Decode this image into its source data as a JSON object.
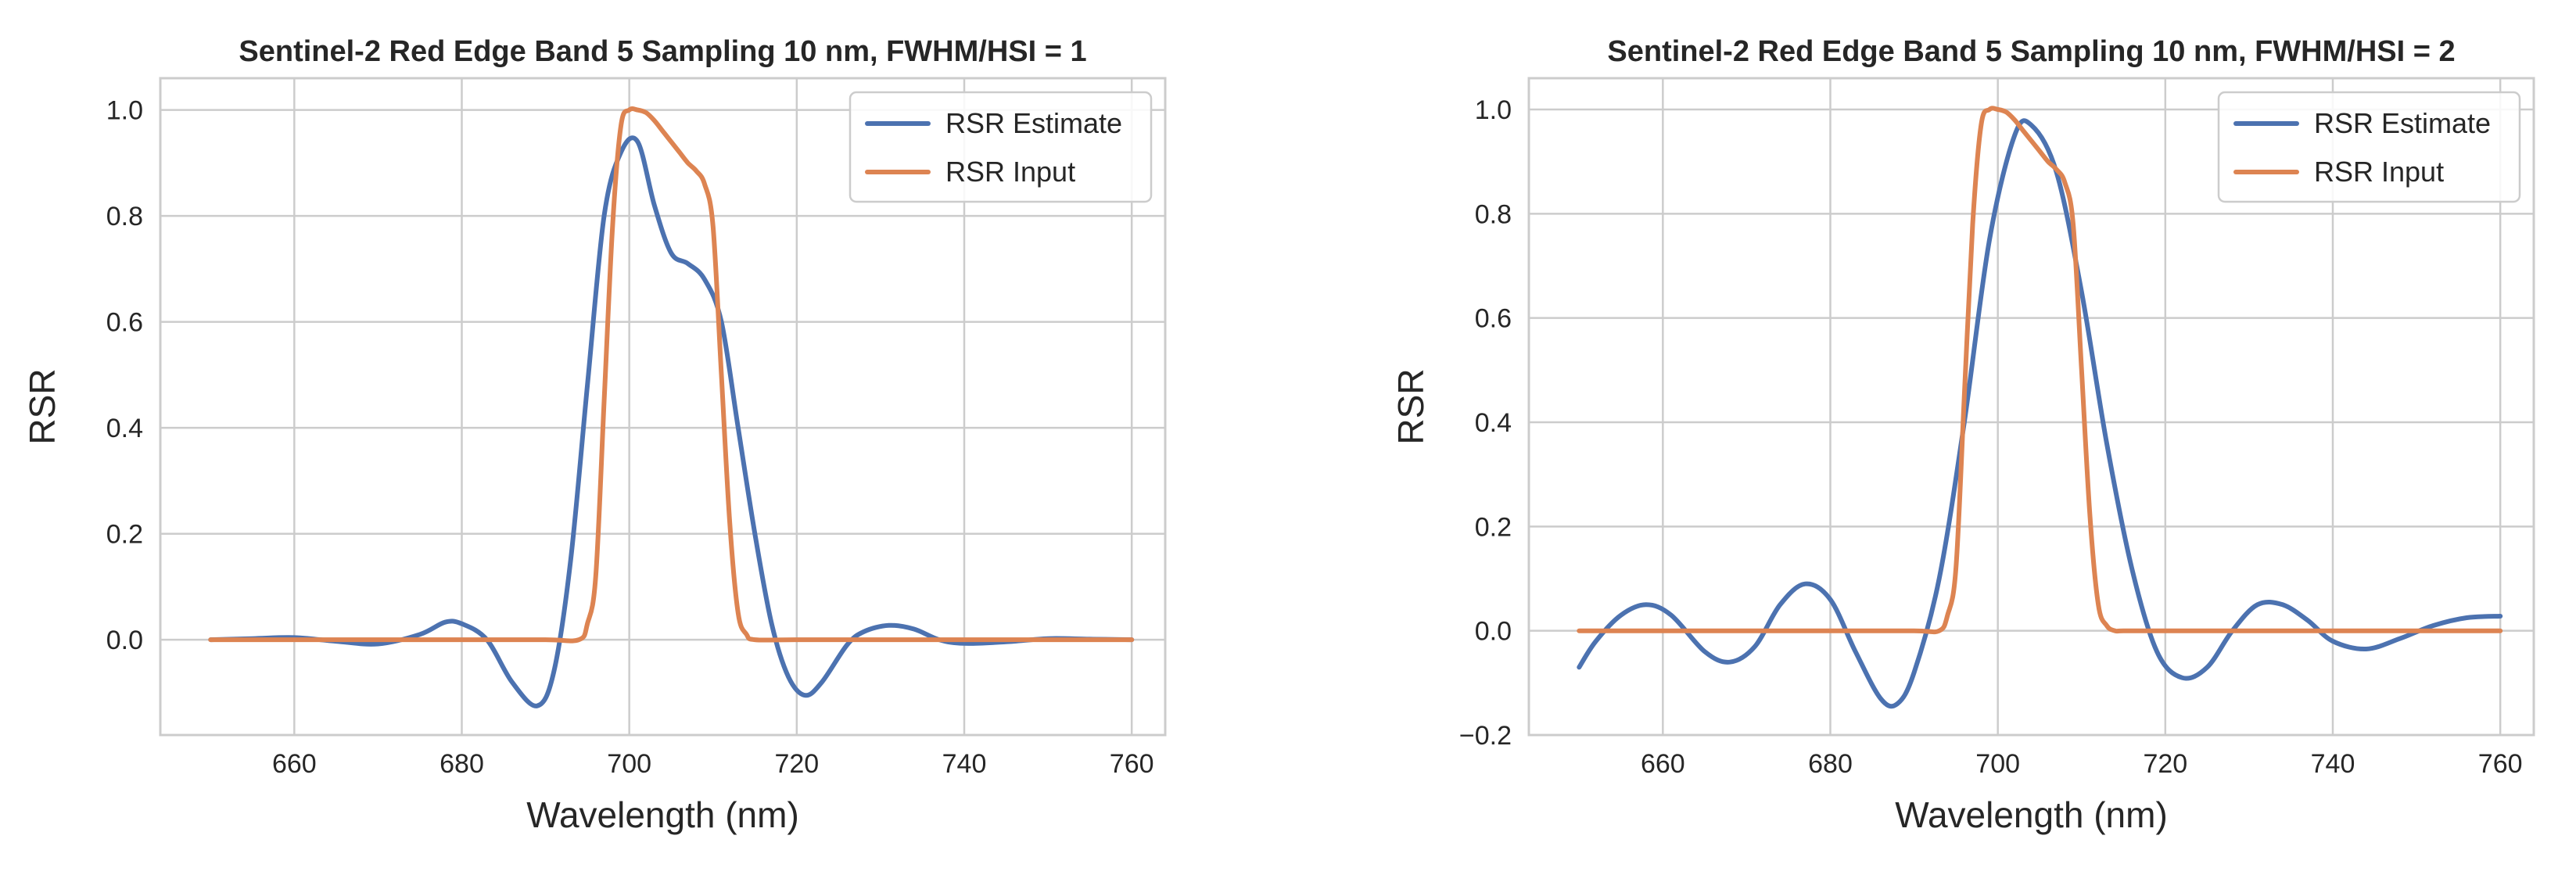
{
  "chart_data": [
    {
      "type": "line",
      "title": "Sentinel-2 Red Edge Band 5 Sampling 10 nm, FWHM/HSI = 1",
      "xlabel": "Wavelength (nm)",
      "ylabel": "RSR",
      "xlim": [
        644,
        764
      ],
      "ylim": [
        -0.18,
        1.06
      ],
      "xticks": [
        660,
        680,
        700,
        720,
        740,
        760
      ],
      "yticks": [
        0.0,
        0.2,
        0.4,
        0.6,
        0.8,
        1.0
      ],
      "ytick_labels": [
        "0.0",
        "0.2",
        "0.4",
        "0.6",
        "0.8",
        "1.0"
      ],
      "grid": true,
      "legend_position": "top-right",
      "series": [
        {
          "name": "RSR Estimate",
          "color": "#4c72b0",
          "x": [
            650,
            655,
            660,
            665,
            670,
            675,
            678,
            680,
            683,
            686,
            689,
            691,
            693,
            695,
            697,
            699,
            701,
            703,
            705,
            707,
            709,
            711,
            713,
            715,
            717,
            719,
            721,
            723,
            726,
            728,
            731,
            734,
            737,
            740,
            745,
            750,
            755,
            760
          ],
          "y": [
            0.0,
            0.002,
            0.004,
            -0.003,
            -0.008,
            0.01,
            0.033,
            0.03,
            0.0,
            -0.08,
            -0.125,
            -0.06,
            0.15,
            0.48,
            0.8,
            0.92,
            0.94,
            0.82,
            0.73,
            0.71,
            0.68,
            0.6,
            0.4,
            0.2,
            0.03,
            -0.07,
            -0.105,
            -0.08,
            -0.01,
            0.015,
            0.027,
            0.02,
            0.0,
            -0.007,
            -0.004,
            0.002,
            0.001,
            0.0
          ]
        },
        {
          "name": "RSR Input",
          "color": "#dd8452",
          "x": [
            650,
            660,
            670,
            680,
            690,
            694,
            695,
            696,
            697,
            698,
            699,
            700,
            701,
            702,
            703,
            704,
            705,
            706,
            707,
            708,
            709,
            710,
            711,
            712,
            713,
            714,
            715,
            720,
            730,
            740,
            750,
            760
          ],
          "y": [
            0.0,
            0.0,
            0.0,
            0.0,
            0.0,
            0.0,
            0.03,
            0.12,
            0.45,
            0.78,
            0.97,
            1.0,
            1.0,
            0.995,
            0.98,
            0.96,
            0.94,
            0.92,
            0.9,
            0.885,
            0.86,
            0.78,
            0.5,
            0.22,
            0.05,
            0.01,
            0.0,
            0.0,
            0.0,
            0.0,
            0.0,
            0.0
          ]
        }
      ]
    },
    {
      "type": "line",
      "title": "Sentinel-2 Red Edge Band 5 Sampling 10 nm, FWHM/HSI = 2",
      "xlabel": "Wavelength (nm)",
      "ylabel": "RSR",
      "xlim": [
        644,
        764
      ],
      "ylim": [
        -0.2,
        1.06
      ],
      "xticks": [
        660,
        680,
        700,
        720,
        740,
        760
      ],
      "yticks": [
        -0.2,
        0.0,
        0.2,
        0.4,
        0.6,
        0.8,
        1.0
      ],
      "ytick_labels": [
        "−0.2",
        "0.0",
        "0.2",
        "0.4",
        "0.6",
        "0.8",
        "1.0"
      ],
      "grid": true,
      "legend_position": "top-right",
      "series": [
        {
          "name": "RSR Estimate",
          "color": "#4c72b0",
          "x": [
            650,
            652,
            655,
            658,
            661,
            665,
            668,
            671,
            674,
            677,
            680,
            683,
            686,
            688,
            690,
            693,
            696,
            699,
            702,
            704,
            707,
            710,
            713,
            716,
            719,
            722,
            725,
            728,
            731,
            734,
            737,
            740,
            744,
            748,
            752,
            756,
            760
          ],
          "y": [
            -0.07,
            -0.02,
            0.03,
            0.05,
            0.03,
            -0.04,
            -0.06,
            -0.03,
            0.05,
            0.09,
            0.06,
            -0.04,
            -0.13,
            -0.14,
            -0.08,
            0.1,
            0.4,
            0.75,
            0.95,
            0.97,
            0.88,
            0.65,
            0.36,
            0.12,
            -0.04,
            -0.09,
            -0.07,
            0.0,
            0.05,
            0.05,
            0.02,
            -0.02,
            -0.035,
            -0.015,
            0.01,
            0.025,
            0.028
          ]
        },
        {
          "name": "RSR Input",
          "color": "#dd8452",
          "x": [
            650,
            660,
            670,
            680,
            690,
            693,
            694,
            695,
            696,
            697,
            698,
            699,
            700,
            701,
            702,
            703,
            704,
            705,
            706,
            707,
            708,
            709,
            710,
            711,
            712,
            713,
            714,
            715,
            720,
            730,
            740,
            750,
            760
          ],
          "y": [
            0.0,
            0.0,
            0.0,
            0.0,
            0.0,
            0.0,
            0.03,
            0.12,
            0.45,
            0.78,
            0.97,
            1.0,
            1.0,
            0.995,
            0.98,
            0.96,
            0.94,
            0.92,
            0.9,
            0.885,
            0.86,
            0.78,
            0.5,
            0.22,
            0.05,
            0.01,
            0.0,
            0.0,
            0.0,
            0.0,
            0.0,
            0.0,
            0.0
          ]
        }
      ]
    }
  ]
}
